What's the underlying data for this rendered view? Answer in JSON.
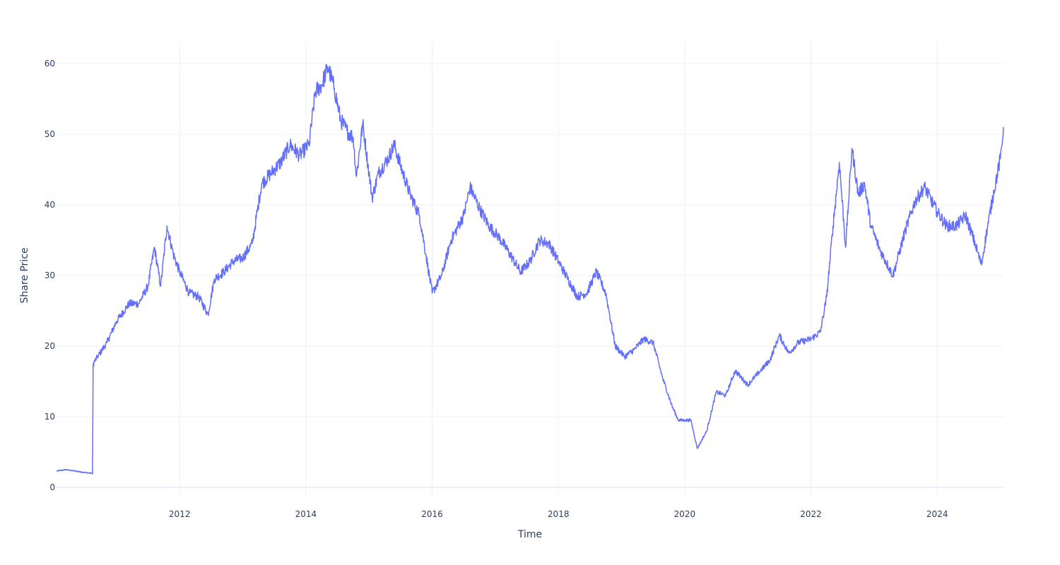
{
  "chart_data": {
    "type": "line",
    "xlabel": "Time",
    "ylabel": "Share Price",
    "xlim": [
      2010.05,
      2025.05
    ],
    "ylim": [
      -1.5,
      63
    ],
    "x_ticks": [
      2012,
      2014,
      2016,
      2018,
      2020,
      2022,
      2024
    ],
    "x_tick_labels": [
      "2012",
      "2014",
      "2016",
      "2018",
      "2020",
      "2022",
      "2024"
    ],
    "y_ticks": [
      0,
      10,
      20,
      30,
      40,
      50,
      60
    ],
    "y_tick_labels": [
      "0",
      "10",
      "20",
      "30",
      "40",
      "50",
      "60"
    ],
    "grid": true,
    "legend": "none",
    "colors": {
      "line": "#636efa",
      "grid": "#ebf0f8",
      "zeroline": "#ebf0f8",
      "text": "#2a3f5f",
      "background": "#ffffff"
    },
    "series": [
      {
        "x": [
          2010.05,
          2010.2,
          2010.35,
          2010.5,
          2010.6,
          2010.62,
          2010.63,
          2010.7,
          2010.85,
          2011.0,
          2011.2,
          2011.35,
          2011.5,
          2011.6,
          2011.7,
          2011.8,
          2011.9,
          2012.0,
          2012.15,
          2012.3,
          2012.45,
          2012.55,
          2012.7,
          2012.85,
          2013.0,
          2013.15,
          2013.3,
          2013.45,
          2013.6,
          2013.75,
          2013.9,
          2014.05,
          2014.15,
          2014.25,
          2014.35,
          2014.45,
          2014.55,
          2014.65,
          2014.75,
          2014.8,
          2014.9,
          2015.05,
          2015.15,
          2015.3,
          2015.4,
          2015.5,
          2015.65,
          2015.8,
          2015.9,
          2016.0,
          2016.15,
          2016.3,
          2016.5,
          2016.6,
          2016.75,
          2016.9,
          2017.05,
          2017.2,
          2017.4,
          2017.55,
          2017.7,
          2017.85,
          2018.0,
          2018.15,
          2018.3,
          2018.45,
          2018.6,
          2018.75,
          2018.8,
          2018.9,
          2019.05,
          2019.2,
          2019.35,
          2019.5,
          2019.65,
          2019.8,
          2019.9,
          2020.0,
          2020.1,
          2020.2,
          2020.35,
          2020.5,
          2020.65,
          2020.8,
          2021.0,
          2021.2,
          2021.35,
          2021.5,
          2021.65,
          2021.8,
          2022.0,
          2022.15,
          2022.25,
          2022.35,
          2022.45,
          2022.55,
          2022.65,
          2022.75,
          2022.85,
          2022.95,
          2023.1,
          2023.3,
          2023.5,
          2023.65,
          2023.8,
          2024.0,
          2024.15,
          2024.3,
          2024.45,
          2024.6,
          2024.7,
          2024.8,
          2024.9,
          2025.0,
          2025.05
        ],
        "y": [
          2.3,
          2.5,
          2.3,
          2.1,
          2.0,
          1.9,
          17.5,
          18.5,
          20.5,
          23.5,
          26.0,
          26.0,
          28.5,
          34.0,
          28.5,
          37.0,
          33.0,
          30.5,
          27.5,
          27.0,
          24.5,
          29.5,
          30.5,
          32.0,
          32.5,
          34.5,
          43.0,
          44.5,
          46.0,
          48.5,
          47.0,
          48.5,
          56.0,
          57.0,
          59.5,
          56.5,
          52.0,
          50.5,
          49.5,
          44.0,
          51.5,
          41.0,
          44.5,
          46.5,
          48.5,
          45.5,
          41.5,
          38.5,
          33.0,
          27.5,
          30.0,
          35.0,
          38.5,
          42.5,
          39.5,
          37.0,
          35.5,
          33.5,
          30.5,
          32.0,
          35.0,
          34.5,
          32.0,
          29.5,
          27.0,
          27.5,
          30.5,
          27.5,
          25.0,
          20.0,
          18.5,
          19.5,
          21.0,
          20.5,
          15.5,
          11.5,
          9.5,
          9.5,
          9.5,
          5.5,
          8.0,
          13.5,
          13.0,
          16.5,
          14.5,
          16.5,
          18.0,
          21.5,
          19.0,
          20.5,
          21.0,
          22.0,
          27.0,
          37.0,
          46.0,
          34.0,
          48.0,
          41.5,
          43.0,
          37.0,
          33.5,
          30.0,
          36.5,
          40.5,
          42.5,
          39.0,
          37.0,
          37.0,
          38.5,
          34.5,
          31.5,
          37.0,
          42.0,
          46.5,
          51.0
        ]
      }
    ]
  }
}
